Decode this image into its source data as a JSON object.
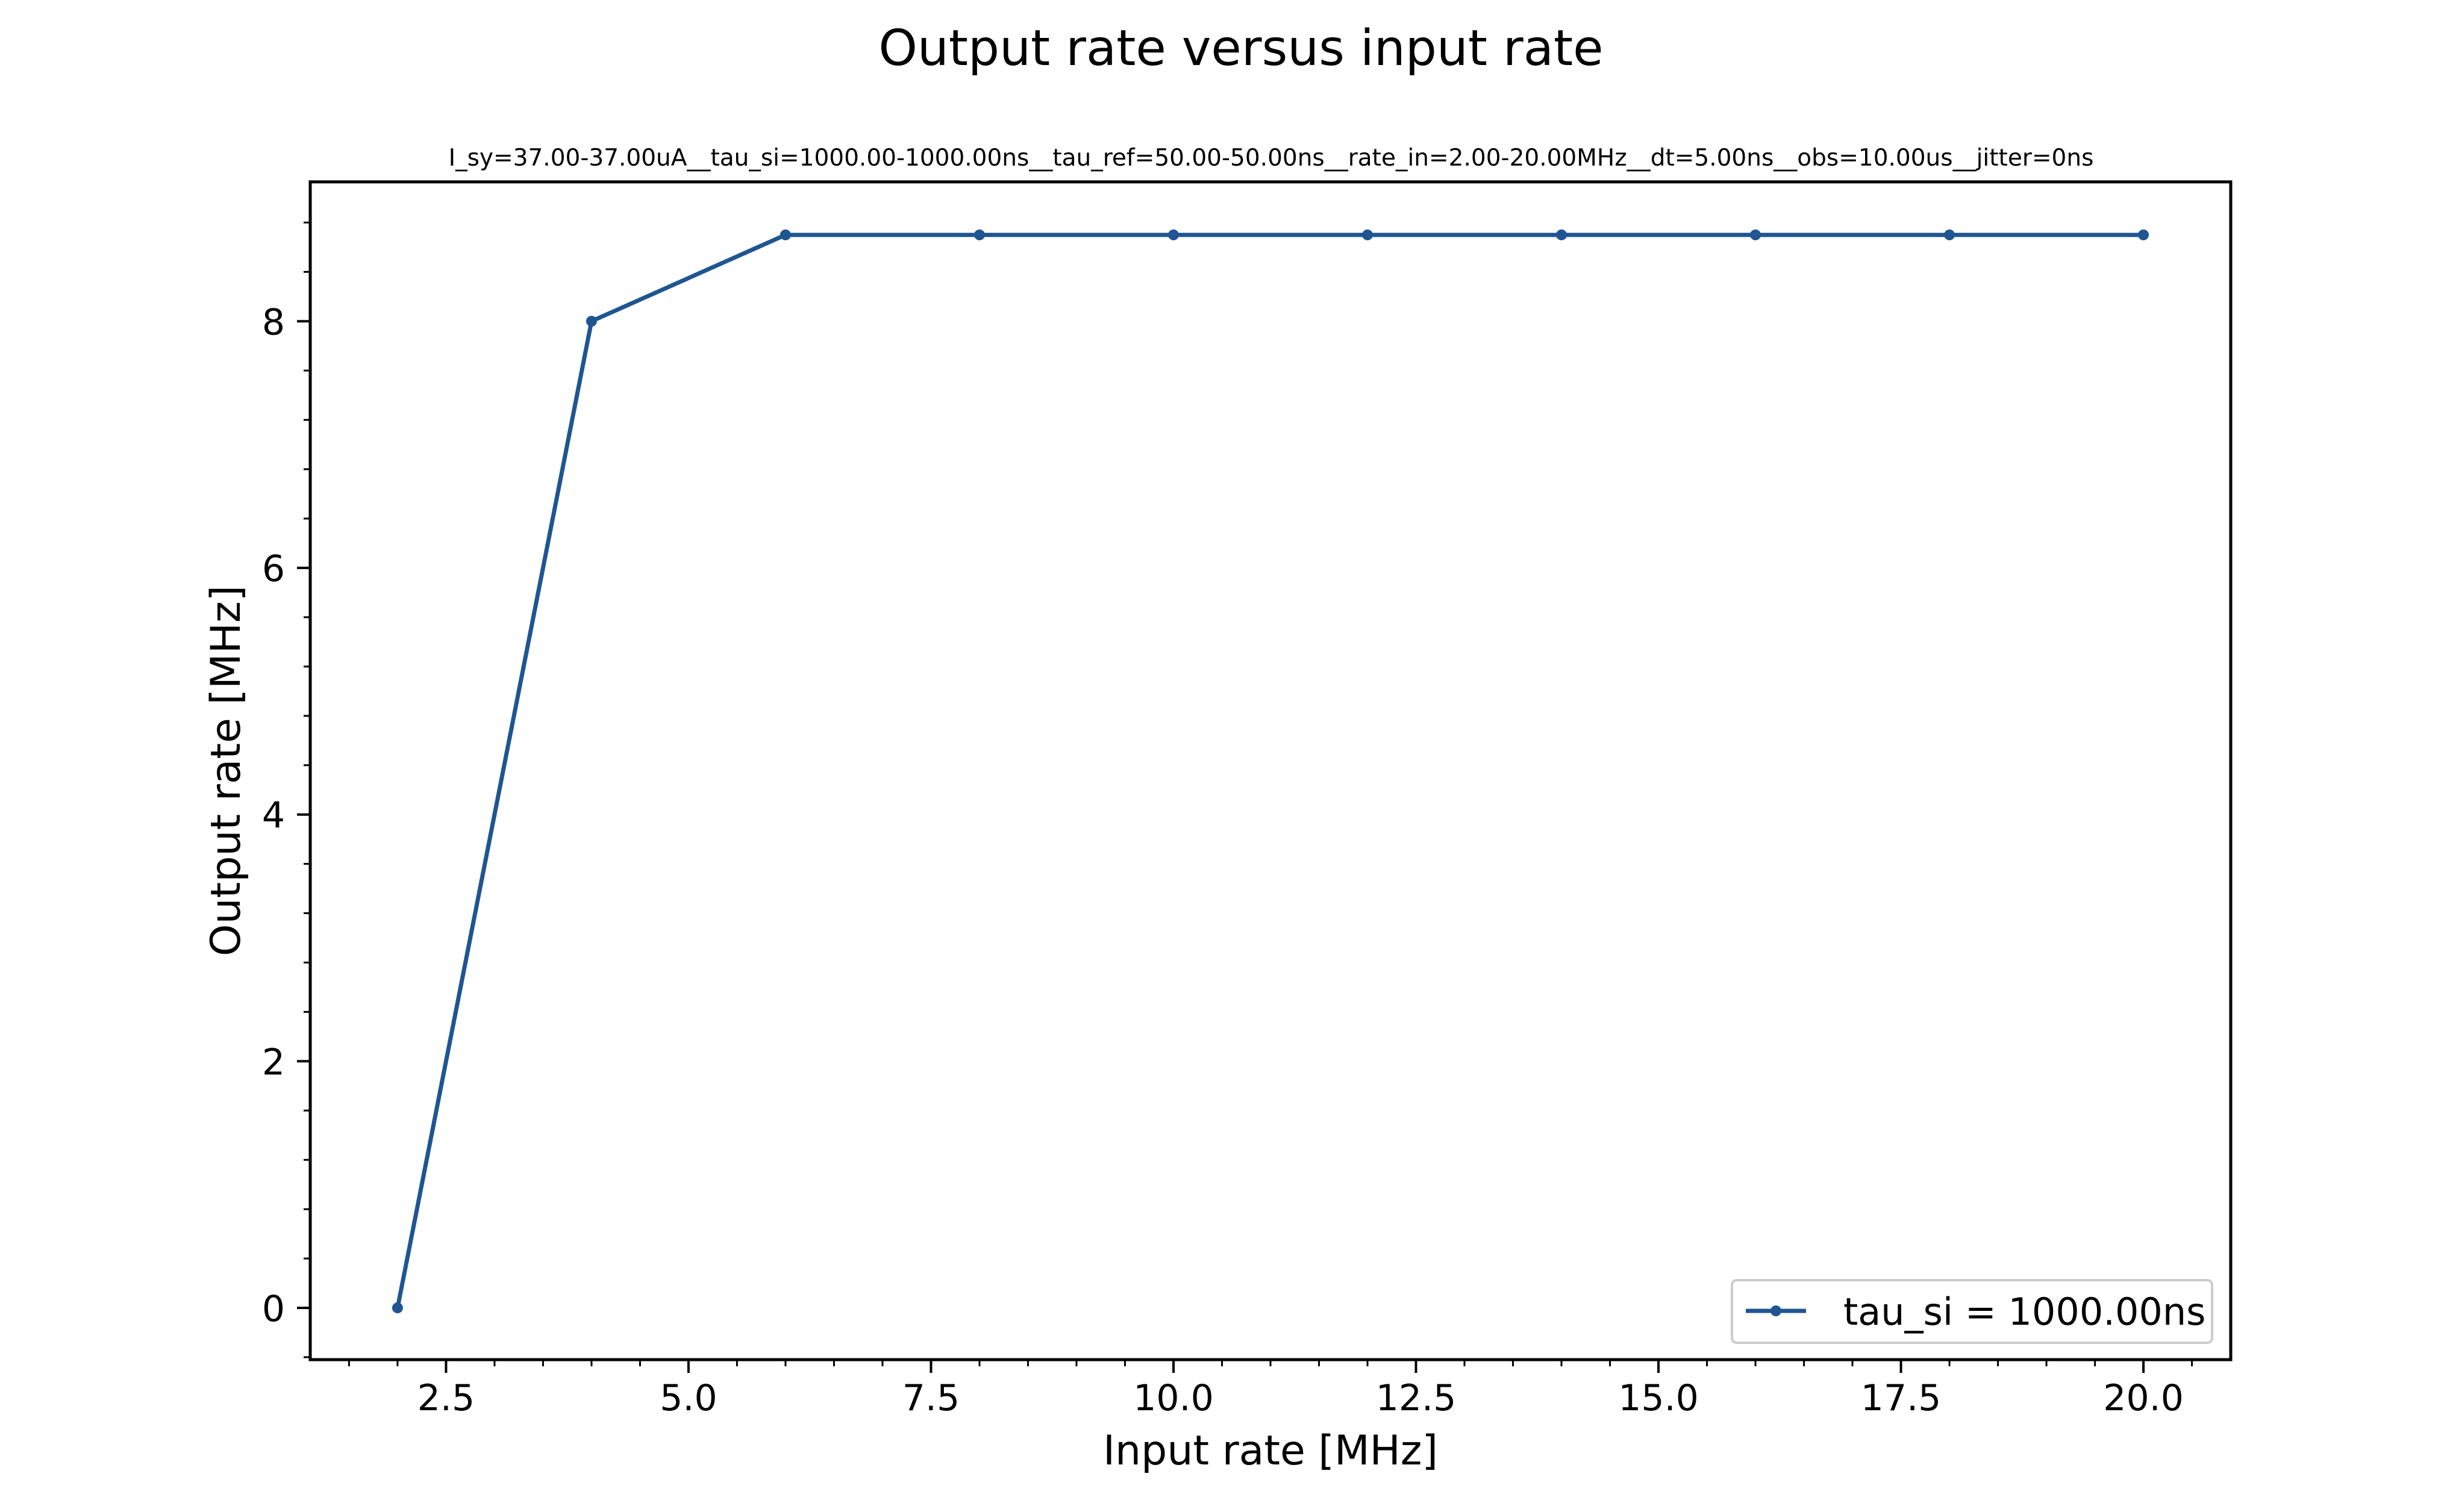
{
  "chart_data": {
    "type": "line",
    "title": "Output rate versus input rate",
    "subtitle": "I_sy=37.00-37.00uA__tau_si=1000.00-1000.00ns__tau_ref=50.00-50.00ns__rate_in=2.00-20.00MHz__dt=5.00ns__obs=10.00us__jitter=0ns",
    "xlabel": "Input rate [MHz]",
    "ylabel": "Output rate [MHz]",
    "xlim": [
      1.1,
      20.9
    ],
    "ylim": [
      -0.42,
      9.13
    ],
    "xticks": [
      2.5,
      5.0,
      7.5,
      10.0,
      12.5,
      15.0,
      17.5,
      20.0
    ],
    "xtick_labels": [
      "2.5",
      "5.0",
      "7.5",
      "10.0",
      "12.5",
      "15.0",
      "17.5",
      "20.0"
    ],
    "yticks": [
      0,
      2,
      4,
      6,
      8
    ],
    "ytick_labels": [
      "0",
      "2",
      "4",
      "6",
      "8"
    ],
    "grid": false,
    "legend_position": "lower-right",
    "series": [
      {
        "name": "tau_si = 1000.00ns",
        "color": "#1f5591",
        "x": [
          2,
          4,
          6,
          8,
          10,
          12,
          14,
          16,
          18,
          20
        ],
        "y": [
          0.0,
          8.0,
          8.7,
          8.7,
          8.7,
          8.7,
          8.7,
          8.7,
          8.7,
          8.7
        ]
      }
    ]
  }
}
